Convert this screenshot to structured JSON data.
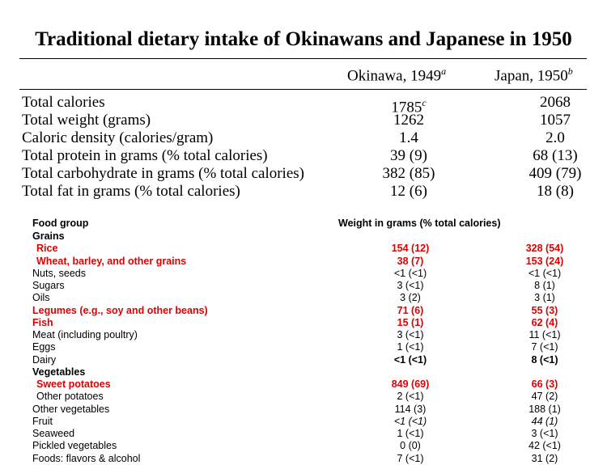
{
  "title": "Traditional dietary intake of Okinawans and Japanese in 1950",
  "summary": {
    "col1": {
      "label": "Okinawa, 1949",
      "note": "a"
    },
    "col2": {
      "label": "Japan, 1950",
      "note": "b"
    },
    "rows": [
      {
        "label": "Total calories",
        "v1": "1785",
        "v1_note": "c",
        "v2": "2068"
      },
      {
        "label": "Total weight (grams)",
        "v1": "1262",
        "v1_note": "",
        "v2": "1057"
      },
      {
        "label": "Caloric density (calories/gram)",
        "v1": "1.4",
        "v1_note": "",
        "v2": "2.0"
      },
      {
        "label": "Total protein in grams (% total calories)",
        "v1": "39 (9)",
        "v1_note": "",
        "v2": "68 (13)"
      },
      {
        "label": "Total carbohydrate in grams (% total calories)",
        "v1": "382 (85)",
        "v1_note": "",
        "v2": "409 (79)"
      },
      {
        "label": "Total fat in grams (% total calories)",
        "v1": "12 (6)",
        "v1_note": "",
        "v2": "18 (8)"
      }
    ]
  },
  "food": {
    "header_group": "Food group",
    "header_weight": "Weight in grams (% total calories)",
    "rows": [
      {
        "label": "Grains",
        "v1": "",
        "v2": "",
        "style": "bold"
      },
      {
        "label": "Rice",
        "v1": "154 (12)",
        "v2": "328 (54)",
        "style": "red-ind"
      },
      {
        "label": "Wheat, barley, and other grains",
        "v1": "38 (7)",
        "v2": "153 (24)",
        "style": "red-ind"
      },
      {
        "label": "Nuts, seeds",
        "v1": "<1 (<1)",
        "v2": "<1 (<1)",
        "style": ""
      },
      {
        "label": "Sugars",
        "v1": "3 (<1)",
        "v2": "8 (1)",
        "style": ""
      },
      {
        "label": "Oils",
        "v1": "3 (2)",
        "v2": "3 (1)",
        "style": ""
      },
      {
        "label": "Legumes (e.g., soy and other beans)",
        "v1": "71 (6)",
        "v2": "55 (3)",
        "style": "red"
      },
      {
        "label": "Fish",
        "v1": "15 (1)",
        "v2": "62 (4)",
        "style": "red"
      },
      {
        "label": "Meat (including poultry)",
        "v1": "3 (<1)",
        "v2": "11 (<1)",
        "style": ""
      },
      {
        "label": "Eggs",
        "v1": "1 (<1)",
        "v2": "7 (<1)",
        "style": ""
      },
      {
        "label": "Dairy",
        "v1": "<1 (<1)",
        "v2": "8 (<1)",
        "style": "bold-vals"
      },
      {
        "label": "Vegetables",
        "v1": "",
        "v2": "",
        "style": "bold"
      },
      {
        "label": "Sweet potatoes",
        "v1": "849 (69)",
        "v2": "66 (3)",
        "style": "red-ind"
      },
      {
        "label": "Other potatoes",
        "v1": "2 (<1)",
        "v2": "47 (2)",
        "style": "ind"
      },
      {
        "label": "Other vegetables",
        "v1": "114 (3)",
        "v2": "188 (1)",
        "style": ""
      },
      {
        "label": "Fruit",
        "v1": "<1 (<1)",
        "v2": "44 (1)",
        "style": "ital-vals"
      },
      {
        "label": "Seaweed",
        "v1": "1 (<1)",
        "v2": "3 (<1)",
        "style": ""
      },
      {
        "label": "Pickled vegetables",
        "v1": "0 (0)",
        "v2": "42 (<1)",
        "style": ""
      },
      {
        "label": "Foods: flavors & alcohol",
        "v1": "7 (<1)",
        "v2": "31 (2)",
        "style": ""
      }
    ]
  }
}
